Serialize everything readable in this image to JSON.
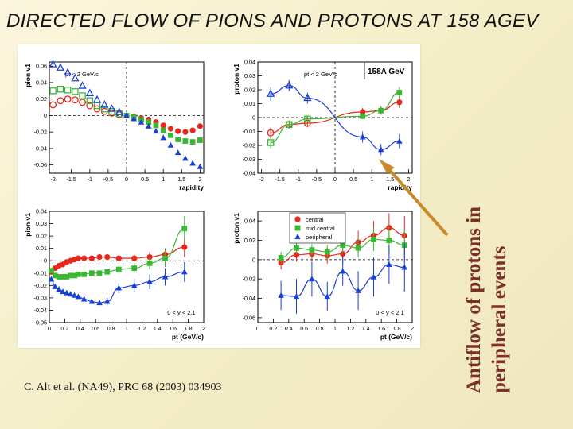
{
  "slide": {
    "title": "DIRECTED FLOW OF PIONS AND PROTONS AT 158 AGEV",
    "citation": "C. Alt et al. (NA49), PRC 68 (2003) 034903",
    "side_note": [
      "Antiflow of protons in",
      "peripheral events"
    ]
  },
  "legend": {
    "entries": [
      "central",
      "mid central",
      "peripheral"
    ]
  },
  "colors": {
    "central": "#e8261b",
    "mid_central": "#3bb833",
    "peripheral": "#1a3fd6",
    "arrow": "#c98a2b",
    "note": "#7a2f28"
  },
  "chart_data": [
    {
      "type": "scatter",
      "panel": "pion-rapidity",
      "annotation": "pt < 2 GeV/c",
      "xlabel": "rapidity",
      "ylabel": "pion v1",
      "xlim": [
        -2.1,
        2.1
      ],
      "ylim": [
        -0.07,
        0.065
      ],
      "xticks": [
        -2,
        -1.5,
        -1,
        -0.5,
        0,
        0.5,
        1,
        1.5,
        2
      ],
      "yticks": [
        -0.06,
        -0.04,
        -0.02,
        0,
        0.02,
        0.04,
        0.06
      ],
      "series": [
        {
          "key": "central",
          "x": [
            -2,
            -1.8,
            -1.6,
            -1.4,
            -1.2,
            -1,
            -0.8,
            -0.6,
            -0.4,
            -0.2,
            0,
            0.2,
            0.4,
            0.6,
            0.8,
            1,
            1.2,
            1.4,
            1.6,
            1.8,
            2
          ],
          "y": [
            0.013,
            0.018,
            0.02,
            0.019,
            0.016,
            0.012,
            0.008,
            0.005,
            0.003,
            0.001,
            0,
            -0.001,
            -0.003,
            -0.005,
            -0.008,
            -0.012,
            -0.016,
            -0.019,
            -0.02,
            -0.018,
            -0.013
          ]
        },
        {
          "key": "mid_central",
          "x": [
            -2,
            -1.8,
            -1.6,
            -1.4,
            -1.2,
            -1,
            -0.8,
            -0.6,
            -0.4,
            -0.2,
            0,
            0.2,
            0.4,
            0.6,
            0.8,
            1,
            1.2,
            1.4,
            1.6,
            1.8,
            2
          ],
          "y": [
            0.03,
            0.032,
            0.031,
            0.029,
            0.024,
            0.018,
            0.012,
            0.008,
            0.005,
            0.002,
            0,
            -0.002,
            -0.005,
            -0.008,
            -0.012,
            -0.018,
            -0.024,
            -0.029,
            -0.031,
            -0.032,
            -0.03
          ]
        },
        {
          "key": "peripheral",
          "x": [
            -2,
            -1.8,
            -1.6,
            -1.4,
            -1.2,
            -1,
            -0.8,
            -0.6,
            -0.4,
            -0.2,
            0,
            0.2,
            0.4,
            0.6,
            0.8,
            1,
            1.2,
            1.4,
            1.6,
            1.8,
            2
          ],
          "y": [
            0.062,
            0.058,
            0.052,
            0.045,
            0.036,
            0.027,
            0.019,
            0.013,
            0.008,
            0.004,
            0,
            -0.004,
            -0.008,
            -0.013,
            -0.019,
            -0.027,
            -0.036,
            -0.045,
            -0.052,
            -0.058,
            -0.062
          ]
        }
      ]
    },
    {
      "type": "scatter",
      "panel": "proton-rapidity",
      "annotation": "pt < 2 GeV/c",
      "label": "158A GeV",
      "xlabel": "rapidity",
      "ylabel": "proton v1",
      "xlim": [
        -2.1,
        2.1
      ],
      "ylim": [
        -0.04,
        0.04
      ],
      "xticks": [
        -2,
        -1.5,
        -1,
        -0.5,
        0,
        0.5,
        1,
        1.5,
        2
      ],
      "yticks": [
        -0.04,
        -0.03,
        -0.02,
        -0.01,
        0,
        0.01,
        0.02,
        0.03,
        0.04
      ],
      "series": [
        {
          "key": "central",
          "x": [
            -1.75,
            -1.25,
            -0.75,
            0.75,
            1.25,
            1.75
          ],
          "y": [
            -0.011,
            -0.005,
            -0.004,
            0.004,
            0.005,
            0.011
          ],
          "err": [
            0.004,
            0.003,
            0.003,
            0.003,
            0.003,
            0.004
          ]
        },
        {
          "key": "mid_central",
          "x": [
            -1.75,
            -1.25,
            -0.75,
            0.75,
            1.25,
            1.75
          ],
          "y": [
            -0.018,
            -0.005,
            -0.001,
            0.001,
            0.005,
            0.018
          ],
          "err": [
            0.004,
            0.003,
            0.002,
            0.002,
            0.003,
            0.004
          ]
        },
        {
          "key": "peripheral",
          "x": [
            -1.75,
            -1.25,
            -0.75,
            0.75,
            1.25,
            1.75
          ],
          "y": [
            0.017,
            0.023,
            0.014,
            -0.014,
            -0.023,
            -0.017
          ],
          "err": [
            0.005,
            0.004,
            0.004,
            0.004,
            0.004,
            0.005
          ]
        }
      ]
    },
    {
      "type": "scatter",
      "panel": "pion-pt",
      "annotation": "0 < y < 2.1",
      "xlabel": "pt (GeV/c)",
      "ylabel": "pion v1",
      "xlim": [
        0,
        2
      ],
      "ylim": [
        -0.05,
        0.04
      ],
      "xticks": [
        0,
        0.2,
        0.4,
        0.6,
        0.8,
        1,
        1.2,
        1.4,
        1.6,
        1.8,
        2
      ],
      "yticks": [
        -0.05,
        -0.04,
        -0.03,
        -0.02,
        -0.01,
        0,
        0.01,
        0.02,
        0.03,
        0.04
      ],
      "series": [
        {
          "key": "central",
          "x": [
            0.025,
            0.075,
            0.125,
            0.175,
            0.225,
            0.275,
            0.325,
            0.375,
            0.45,
            0.55,
            0.65,
            0.75,
            0.9,
            1.1,
            1.3,
            1.5,
            1.75
          ],
          "y": [
            -0.009,
            -0.006,
            -0.004,
            -0.003,
            -0.001,
            0,
            0.001,
            0.002,
            0.002,
            0.002,
            0.003,
            0.003,
            0.002,
            0.002,
            0.003,
            0.005,
            0.011
          ],
          "err": [
            0,
            0,
            0,
            0,
            0,
            0,
            0,
            0,
            0,
            0,
            0,
            0,
            0.002,
            0.003,
            0.004,
            0.005,
            0.008
          ]
        },
        {
          "key": "mid_central",
          "x": [
            0.025,
            0.075,
            0.125,
            0.175,
            0.225,
            0.275,
            0.325,
            0.375,
            0.45,
            0.55,
            0.65,
            0.75,
            0.9,
            1.1,
            1.3,
            1.5,
            1.75
          ],
          "y": [
            -0.008,
            -0.012,
            -0.013,
            -0.013,
            -0.013,
            -0.012,
            -0.012,
            -0.011,
            -0.011,
            -0.01,
            -0.01,
            -0.009,
            -0.007,
            -0.006,
            -0.002,
            0.002,
            0.026
          ],
          "err": [
            0,
            0,
            0,
            0,
            0,
            0,
            0,
            0,
            0,
            0,
            0,
            0,
            0.003,
            0.004,
            0.005,
            0.007,
            0.01
          ]
        },
        {
          "key": "peripheral",
          "x": [
            0.025,
            0.075,
            0.125,
            0.175,
            0.225,
            0.275,
            0.325,
            0.375,
            0.45,
            0.55,
            0.65,
            0.75,
            0.9,
            1.1,
            1.3,
            1.5,
            1.75
          ],
          "y": [
            -0.015,
            -0.021,
            -0.023,
            -0.025,
            -0.026,
            -0.027,
            -0.028,
            -0.029,
            -0.031,
            -0.033,
            -0.034,
            -0.033,
            -0.022,
            -0.02,
            -0.017,
            -0.013,
            -0.009
          ],
          "err": [
            0,
            0,
            0,
            0,
            0,
            0,
            0,
            0,
            0,
            0,
            0,
            0.003,
            0.004,
            0.005,
            0.006,
            0.007,
            0.008
          ]
        }
      ]
    },
    {
      "type": "scatter",
      "panel": "proton-pt",
      "annotation": "0 < y < 2.1",
      "xlabel": "pt (GeV/c)",
      "ylabel": "proton v1",
      "xlim": [
        0,
        2
      ],
      "ylim": [
        -0.065,
        0.05
      ],
      "xticks": [
        0,
        0.2,
        0.4,
        0.6,
        0.8,
        1,
        1.2,
        1.4,
        1.6,
        1.8,
        2
      ],
      "yticks": [
        -0.06,
        -0.04,
        -0.02,
        0,
        0.02,
        0.04
      ],
      "series": [
        {
          "key": "central",
          "x": [
            0.3,
            0.5,
            0.7,
            0.9,
            1.1,
            1.3,
            1.5,
            1.7,
            1.9
          ],
          "y": [
            -0.003,
            0.005,
            0.006,
            0.004,
            0.006,
            0.018,
            0.025,
            0.033,
            0.025
          ],
          "err": [
            0.007,
            0.007,
            0.007,
            0.008,
            0.01,
            0.012,
            0.015,
            0.015,
            0.02
          ]
        },
        {
          "key": "mid_central",
          "x": [
            0.3,
            0.5,
            0.7,
            0.9,
            1.1,
            1.3,
            1.5,
            1.7,
            1.9
          ],
          "y": [
            0.002,
            0.012,
            0.01,
            0.008,
            0.015,
            0.012,
            0.021,
            0.02,
            0.015
          ],
          "err": [
            0.006,
            0.006,
            0.006,
            0.007,
            0.009,
            0.01,
            0.012,
            0.014,
            0.017
          ]
        },
        {
          "key": "peripheral",
          "x": [
            0.3,
            0.5,
            0.7,
            0.9,
            1.1,
            1.3,
            1.5,
            1.7,
            1.9
          ],
          "y": [
            -0.037,
            -0.038,
            -0.02,
            -0.038,
            -0.012,
            -0.032,
            -0.018,
            -0.005,
            -0.008
          ],
          "err": [
            0.015,
            0.018,
            0.018,
            0.015,
            0.015,
            0.02,
            0.02,
            0.02,
            0.025
          ]
        }
      ]
    }
  ]
}
